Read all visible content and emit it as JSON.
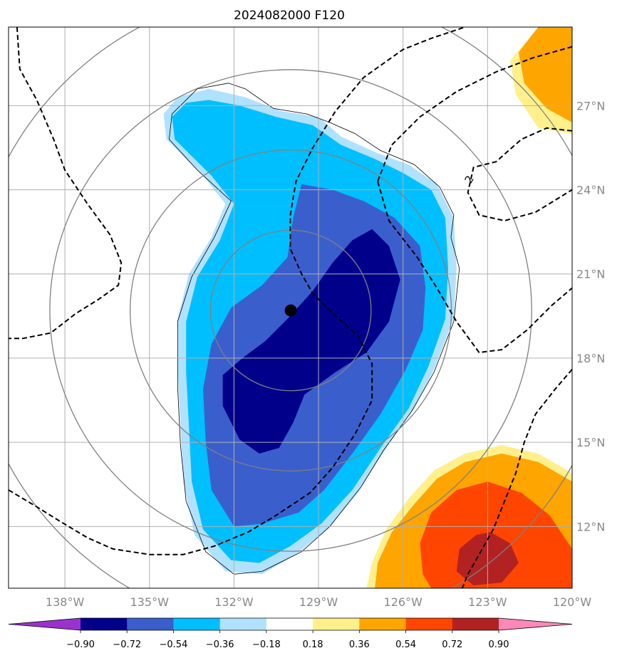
{
  "chart_data": {
    "type": "heatmap",
    "title": "2024082000 F120",
    "x_ticks": [
      "138°W",
      "135°W",
      "132°W",
      "129°W",
      "126°W",
      "123°W",
      "120°W"
    ],
    "x_tick_values": [
      -138,
      -135,
      -132,
      -129,
      -126,
      -123,
      -120
    ],
    "y_ticks": [
      "27°N",
      "24°N",
      "21°N",
      "18°N",
      "15°N",
      "12°N"
    ],
    "y_tick_values": [
      27,
      24,
      21,
      18,
      15,
      12
    ],
    "xlim": [
      -140,
      -120
    ],
    "ylim": [
      9.8,
      29.8
    ],
    "grid": true,
    "storm_center": {
      "lon": -129.985,
      "lat": 19.7
    },
    "range_rings_deg": [
      3.9,
      4.4,
      7.8,
      11.3
    ],
    "contour_label": "2",
    "colorbar": {
      "levels": [
        -0.9,
        -0.72,
        -0.54,
        -0.36,
        -0.18,
        0.18,
        0.36,
        0.54,
        0.72,
        0.9
      ],
      "tick_labels": [
        "−0.90",
        "−0.72",
        "−0.54",
        "−0.36",
        "−0.18",
        "0.18",
        "0.36",
        "0.54",
        "0.72",
        "0.90"
      ],
      "colors": [
        "#9932cc",
        "#00008b",
        "#3a5fcd",
        "#00bfff",
        "#b0e2ff",
        "#ffffff",
        "#fff08c",
        "#ffa500",
        "#ff4500",
        "#b22222",
        "#ff88bb"
      ],
      "extend": "both"
    },
    "fields": [
      {
        "level_range": [
          -0.36,
          -0.18
        ],
        "color": "#b0e2ff",
        "polygon": [
          [
            -132.9,
            27.6
          ],
          [
            -131.6,
            27.3
          ],
          [
            -130.3,
            26.8
          ],
          [
            -129.0,
            26.6
          ],
          [
            -128.2,
            25.9
          ],
          [
            -126.9,
            25.3
          ],
          [
            -125.8,
            24.9
          ],
          [
            -124.8,
            24.2
          ],
          [
            -124.2,
            23.0
          ],
          [
            -124.1,
            21.2
          ],
          [
            -124.2,
            19.4
          ],
          [
            -124.9,
            17.6
          ],
          [
            -125.6,
            16.2
          ],
          [
            -126.6,
            14.8
          ],
          [
            -127.6,
            13.2
          ],
          [
            -128.7,
            11.9
          ],
          [
            -129.8,
            11.0
          ],
          [
            -131.0,
            10.3
          ],
          [
            -132.3,
            10.4
          ],
          [
            -133.4,
            11.7
          ],
          [
            -133.8,
            13.6
          ],
          [
            -133.9,
            15.6
          ],
          [
            -134.0,
            17.5
          ],
          [
            -134.0,
            19.4
          ],
          [
            -133.6,
            21.0
          ],
          [
            -132.8,
            22.3
          ],
          [
            -132.3,
            23.5
          ],
          [
            -133.1,
            24.5
          ],
          [
            -134.4,
            25.8
          ],
          [
            -134.5,
            26.7
          ],
          [
            -134.0,
            27.3
          ]
        ]
      },
      {
        "level_range": [
          -0.54,
          -0.36
        ],
        "color": "#00bfff",
        "polygon": [
          [
            -132.9,
            27.2
          ],
          [
            -131.8,
            27.0
          ],
          [
            -130.5,
            26.6
          ],
          [
            -129.2,
            26.3
          ],
          [
            -128.2,
            25.6
          ],
          [
            -127.0,
            25.1
          ],
          [
            -126.0,
            24.6
          ],
          [
            -125.0,
            24.0
          ],
          [
            -124.5,
            23.0
          ],
          [
            -124.4,
            21.2
          ],
          [
            -124.5,
            19.4
          ],
          [
            -125.1,
            17.7
          ],
          [
            -125.8,
            16.2
          ],
          [
            -126.8,
            14.8
          ],
          [
            -127.8,
            13.3
          ],
          [
            -128.9,
            12.1
          ],
          [
            -130.0,
            11.3
          ],
          [
            -131.1,
            10.7
          ],
          [
            -132.1,
            10.8
          ],
          [
            -133.1,
            11.9
          ],
          [
            -133.5,
            13.6
          ],
          [
            -133.6,
            15.6
          ],
          [
            -133.7,
            17.5
          ],
          [
            -133.7,
            19.3
          ],
          [
            -133.3,
            20.9
          ],
          [
            -132.5,
            22.2
          ],
          [
            -132.0,
            23.5
          ],
          [
            -132.8,
            24.5
          ],
          [
            -134.1,
            25.8
          ],
          [
            -134.2,
            26.6
          ],
          [
            -133.7,
            27.1
          ]
        ]
      },
      {
        "level_range": [
          -0.72,
          -0.54
        ],
        "color": "#3a5fcd",
        "polygon": [
          [
            -129.6,
            24.2
          ],
          [
            -128.5,
            24.0
          ],
          [
            -127.4,
            23.6
          ],
          [
            -126.3,
            23.0
          ],
          [
            -125.4,
            22.0
          ],
          [
            -125.2,
            20.5
          ],
          [
            -125.3,
            19.0
          ],
          [
            -125.9,
            17.6
          ],
          [
            -126.8,
            16.0
          ],
          [
            -127.8,
            14.6
          ],
          [
            -128.8,
            13.3
          ],
          [
            -129.7,
            12.5
          ],
          [
            -131.0,
            12.1
          ],
          [
            -132.0,
            12.0
          ],
          [
            -132.8,
            13.3
          ],
          [
            -133.0,
            15.0
          ],
          [
            -133.1,
            16.9
          ],
          [
            -132.8,
            18.5
          ],
          [
            -132.1,
            19.8
          ],
          [
            -131.0,
            20.6
          ],
          [
            -130.1,
            21.6
          ],
          [
            -129.9,
            23.0
          ]
        ]
      },
      {
        "level_range": [
          -0.9,
          -0.72
        ],
        "color": "#00008b",
        "polygon": [
          [
            -127.1,
            22.6
          ],
          [
            -126.5,
            22.0
          ],
          [
            -126.1,
            20.8
          ],
          [
            -126.5,
            19.3
          ],
          [
            -127.3,
            18.2
          ],
          [
            -128.4,
            17.5
          ],
          [
            -129.5,
            16.7
          ],
          [
            -129.9,
            15.7
          ],
          [
            -130.4,
            14.8
          ],
          [
            -131.1,
            14.6
          ],
          [
            -131.8,
            15.1
          ],
          [
            -132.4,
            16.3
          ],
          [
            -132.4,
            17.4
          ],
          [
            -131.7,
            18.0
          ],
          [
            -130.9,
            18.6
          ],
          [
            -130.1,
            19.4
          ],
          [
            -129.2,
            20.4
          ],
          [
            -128.5,
            21.4
          ],
          [
            -127.8,
            22.2
          ]
        ]
      },
      {
        "level_range": [
          0.18,
          0.36
        ],
        "color": "#fff08c",
        "polygon": [
          [
            -121.2,
            29.8
          ],
          [
            -120.0,
            29.8
          ],
          [
            -120.0,
            26.0
          ],
          [
            -121.2,
            26.2
          ],
          [
            -122.0,
            27.4
          ],
          [
            -122.2,
            28.6
          ]
        ]
      },
      {
        "level_range": [
          0.36,
          0.54
        ],
        "color": "#ffa500",
        "polygon": [
          [
            -121.2,
            29.8
          ],
          [
            -120.0,
            29.8
          ],
          [
            -120.0,
            26.4
          ],
          [
            -120.9,
            26.9
          ],
          [
            -121.7,
            27.8
          ],
          [
            -121.9,
            28.9
          ]
        ]
      },
      {
        "level_range": [
          0.18,
          0.36
        ],
        "color": "#fff08c",
        "polygon": [
          [
            -120.0,
            13.9
          ],
          [
            -121.2,
            14.6
          ],
          [
            -122.5,
            14.9
          ],
          [
            -123.8,
            14.6
          ],
          [
            -124.9,
            14.0
          ],
          [
            -125.8,
            13.0
          ],
          [
            -126.6,
            11.9
          ],
          [
            -127.1,
            10.7
          ],
          [
            -127.3,
            9.8
          ],
          [
            -120.0,
            9.8
          ]
        ]
      },
      {
        "level_range": [
          0.36,
          0.54
        ],
        "color": "#ffa500",
        "polygon": [
          [
            -120.0,
            13.6
          ],
          [
            -121.2,
            14.3
          ],
          [
            -122.5,
            14.6
          ],
          [
            -123.8,
            14.3
          ],
          [
            -124.8,
            13.7
          ],
          [
            -125.6,
            12.8
          ],
          [
            -126.4,
            11.8
          ],
          [
            -126.9,
            10.7
          ],
          [
            -127.0,
            9.8
          ],
          [
            -120.0,
            9.8
          ]
        ]
      },
      {
        "level_range": [
          0.54,
          0.72
        ],
        "color": "#ff4500",
        "polygon": [
          [
            -120.8,
            12.4
          ],
          [
            -121.8,
            13.2
          ],
          [
            -123.0,
            13.6
          ],
          [
            -124.1,
            13.3
          ],
          [
            -125.0,
            12.5
          ],
          [
            -125.4,
            11.4
          ],
          [
            -125.3,
            10.3
          ],
          [
            -125.0,
            9.8
          ],
          [
            -120.0,
            9.8
          ],
          [
            -120.0,
            11.2
          ]
        ]
      },
      {
        "level_range": [
          0.72,
          0.9
        ],
        "color": "#b22222",
        "polygon": [
          [
            -122.9,
            11.8
          ],
          [
            -122.2,
            11.4
          ],
          [
            -121.9,
            10.7
          ],
          [
            -122.5,
            10.0
          ],
          [
            -123.5,
            9.9
          ],
          [
            -124.1,
            10.4
          ],
          [
            -124.0,
            11.2
          ],
          [
            -123.4,
            11.7
          ]
        ]
      }
    ],
    "contours_dashed": [
      [
        [
          -139.7,
          29.8
        ],
        [
          -139.6,
          28.3
        ],
        [
          -139.0,
          27.2
        ],
        [
          -138.4,
          25.8
        ],
        [
          -138.0,
          24.7
        ],
        [
          -137.2,
          23.5
        ],
        [
          -136.4,
          22.4
        ],
        [
          -136.0,
          21.4
        ],
        [
          -136.1,
          20.6
        ],
        [
          -136.8,
          20.1
        ],
        [
          -137.6,
          19.6
        ],
        [
          -138.5,
          18.9
        ],
        [
          -139.5,
          18.7
        ],
        [
          -140.0,
          18.7
        ]
      ],
      [
        [
          -140.0,
          13.3
        ],
        [
          -139.0,
          12.7
        ],
        [
          -138.2,
          12.2
        ],
        [
          -137.2,
          11.6
        ],
        [
          -136.3,
          11.2
        ],
        [
          -135.0,
          11.0
        ],
        [
          -133.8,
          11.0
        ],
        [
          -132.7,
          11.3
        ],
        [
          -131.5,
          11.8
        ],
        [
          -130.5,
          12.4
        ],
        [
          -129.3,
          13.2
        ],
        [
          -128.5,
          14.1
        ],
        [
          -127.7,
          15.3
        ],
        [
          -127.1,
          16.5
        ],
        [
          -127.1,
          17.8
        ],
        [
          -127.6,
          18.8
        ],
        [
          -128.5,
          19.6
        ],
        [
          -129.2,
          20.3
        ],
        [
          -129.6,
          21.0
        ],
        [
          -130.0,
          21.9
        ],
        [
          -130.0,
          23.1
        ],
        [
          -129.8,
          24.3
        ],
        [
          -129.2,
          25.5
        ],
        [
          -128.4,
          26.8
        ],
        [
          -127.4,
          28.0
        ],
        [
          -126.0,
          29.0
        ],
        [
          -125.0,
          29.4
        ],
        [
          -123.8,
          29.8
        ]
      ],
      [
        [
          -126.9,
          24.3
        ],
        [
          -126.4,
          25.6
        ],
        [
          -125.4,
          26.6
        ],
        [
          -124.1,
          27.5
        ],
        [
          -122.7,
          28.2
        ],
        [
          -121.4,
          28.7
        ],
        [
          -120.0,
          29.1
        ]
      ],
      [
        [
          -126.9,
          24.3
        ],
        [
          -126.5,
          22.9
        ],
        [
          -125.5,
          21.6
        ],
        [
          -124.8,
          20.5
        ],
        [
          -124.1,
          19.3
        ],
        [
          -123.3,
          18.2
        ],
        [
          -122.5,
          18.3
        ],
        [
          -121.6,
          19.0
        ],
        [
          -120.7,
          19.9
        ],
        [
          -120.0,
          20.5
        ]
      ],
      [
        [
          -120.0,
          26.1
        ],
        [
          -120.9,
          26.2
        ],
        [
          -121.8,
          25.8
        ],
        [
          -122.7,
          25.0
        ],
        [
          -123.5,
          24.8
        ],
        [
          -123.7,
          23.9
        ],
        [
          -123.3,
          23.1
        ],
        [
          -122.4,
          22.9
        ],
        [
          -121.3,
          23.2
        ],
        [
          -120.0,
          24.0
        ]
      ],
      [
        [
          -120.0,
          17.6
        ],
        [
          -120.6,
          16.9
        ],
        [
          -121.3,
          16.0
        ],
        [
          -121.7,
          15.0
        ],
        [
          -122.0,
          13.9
        ],
        [
          -122.4,
          12.9
        ],
        [
          -122.8,
          11.9
        ],
        [
          -123.3,
          11.0
        ],
        [
          -123.7,
          10.3
        ],
        [
          -123.9,
          9.8
        ]
      ]
    ],
    "zero_line": [
      [
        -132.2,
        27.8
      ],
      [
        -131.6,
        27.6
      ],
      [
        -130.6,
        26.9
      ],
      [
        -129.4,
        26.7
      ],
      [
        -128.6,
        26.4
      ],
      [
        -127.7,
        26.0
      ],
      [
        -126.8,
        25.4
      ],
      [
        -125.6,
        24.9
      ],
      [
        -124.7,
        24.1
      ],
      [
        -124.2,
        23.1
      ],
      [
        -124.3,
        22.3
      ],
      [
        -124.0,
        21.2
      ],
      [
        -124.2,
        19.3
      ],
      [
        -124.9,
        17.5
      ],
      [
        -125.7,
        16.1
      ],
      [
        -126.7,
        14.7
      ],
      [
        -127.5,
        13.4
      ],
      [
        -128.6,
        12.0
      ],
      [
        -129.6,
        11.1
      ],
      [
        -131.0,
        10.4
      ],
      [
        -132.0,
        10.3
      ],
      [
        -133.0,
        11.1
      ],
      [
        -133.7,
        12.9
      ],
      [
        -133.9,
        14.9
      ],
      [
        -134.0,
        17.0
      ],
      [
        -134.0,
        19.3
      ],
      [
        -133.5,
        20.9
      ],
      [
        -132.7,
        22.3
      ],
      [
        -132.1,
        23.6
      ],
      [
        -133.3,
        24.7
      ],
      [
        -134.3,
        25.8
      ],
      [
        -134.2,
        26.7
      ],
      [
        -133.3,
        27.6
      ]
    ]
  }
}
